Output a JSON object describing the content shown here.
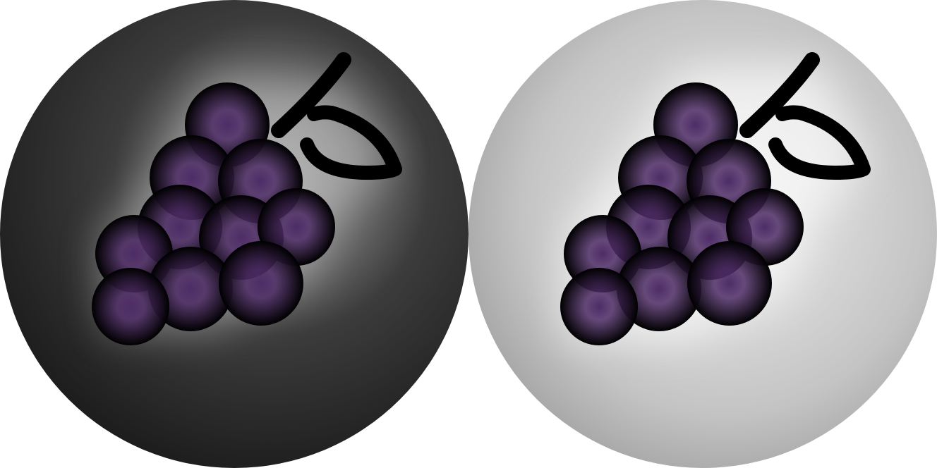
{
  "icons": [
    {
      "name": "grapes-icon-dark",
      "variant": "dark",
      "background_colors": [
        "#b2b2b2",
        "#3c3c3c",
        "#121212"
      ],
      "icon_color": "#000000",
      "grape_highlight_color": "#4e2c66"
    },
    {
      "name": "grapes-icon-light",
      "variant": "light",
      "background_colors": [
        "#eeeeee",
        "#c4c4c4",
        "#8c8c8c"
      ],
      "icon_color": "#000000",
      "grape_highlight_color": "#4e2c66"
    }
  ]
}
